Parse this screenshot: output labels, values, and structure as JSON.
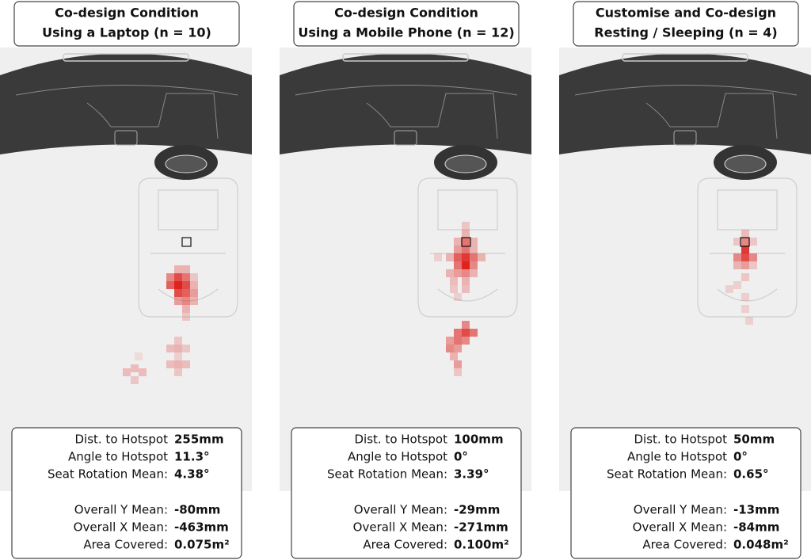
{
  "panels": [
    {
      "title": [
        "Co-design Condition",
        "Using a Laptop (n = 10)"
      ],
      "stats": [
        {
          "label": "Dist. to Hotspot",
          "value": "255mm"
        },
        {
          "label": "Angle to Hotspot",
          "value": "11.3°"
        },
        {
          "label": "Seat Rotation Mean:",
          "value": "4.38°"
        },
        {
          "label": "Overall Y Mean:",
          "value": "-80mm"
        },
        {
          "label": "Overall X Mean:",
          "value": "-463mm"
        },
        {
          "label": "Area Covered:",
          "value": "0.075m²"
        }
      ]
    },
    {
      "title": [
        "Co-design Condition",
        "Using a Mobile Phone (n = 12)"
      ],
      "stats": [
        {
          "label": "Dist. to Hotspot",
          "value": "100mm"
        },
        {
          "label": "Angle to Hotspot",
          "value": "0°"
        },
        {
          "label": "Seat Rotation Mean:",
          "value": "3.39°"
        },
        {
          "label": "Overall Y Mean:",
          "value": "-29mm"
        },
        {
          "label": "Overall X Mean:",
          "value": "-271mm"
        },
        {
          "label": "Area Covered:",
          "value": "0.100m²"
        }
      ]
    },
    {
      "title": [
        "Customise and Co-design",
        "Resting / Sleeping (n = 4)"
      ],
      "stats": [
        {
          "label": "Dist. to Hotspot",
          "value": "50mm"
        },
        {
          "label": "Angle to Hotspot",
          "value": "0°"
        },
        {
          "label": "Seat Rotation Mean:",
          "value": "0.65°"
        },
        {
          "label": "Overall Y Mean:",
          "value": "-13mm"
        },
        {
          "label": "Overall X Mean:",
          "value": "-84mm"
        },
        {
          "label": "Area Covered:",
          "value": "0.048m²"
        }
      ]
    }
  ]
}
